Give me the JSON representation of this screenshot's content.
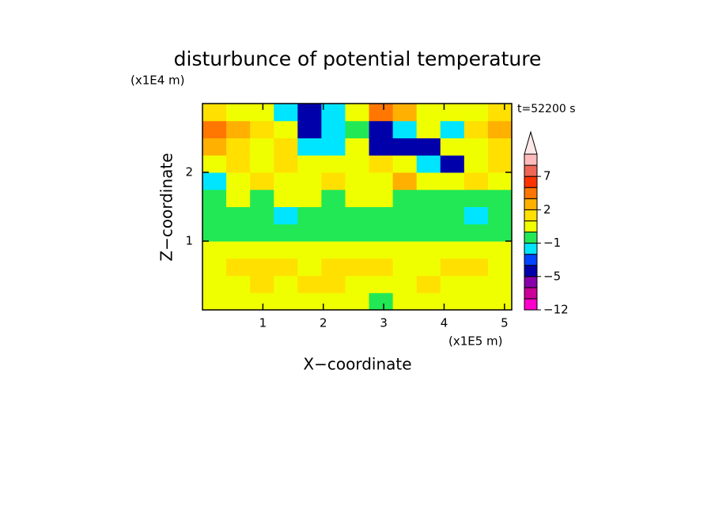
{
  "chart_data": {
    "type": "contour",
    "title": "disturbunce of potential temperature",
    "xlabel": "X−coordinate",
    "ylabel": "Z−coordinate",
    "xunit": "(x1E5 m)",
    "yunit": "(x1E4 m)",
    "annotation": "t=52200 s",
    "xlim": [
      0,
      5.12
    ],
    "ylim": [
      0,
      3
    ],
    "xticks": [
      1,
      2,
      3,
      4,
      5
    ],
    "yticks": [
      1,
      2
    ],
    "colorbar": {
      "levels": [
        -12,
        -9,
        -7,
        -5,
        -3,
        -2,
        -1,
        0,
        1,
        2,
        3,
        5,
        7,
        9,
        11
      ],
      "colors": [
        "#ff00cc",
        "#cc0099",
        "#8800aa",
        "#0000aa",
        "#0044ff",
        "#00e5ff",
        "#22e855",
        "#f0ff00",
        "#ffe000",
        "#ffb000",
        "#ff7700",
        "#ff3300",
        "#ee6655",
        "#ffbbbb"
      ],
      "ticks": [
        {
          "value": -12,
          "label": "−12"
        },
        {
          "value": -5,
          "label": "−5"
        },
        {
          "value": -1,
          "label": "−1"
        },
        2,
        7
      ]
    },
    "field": {
      "values": [
        [
          0.5,
          0.5,
          0.5,
          0.5,
          0.5,
          0.5,
          0.5,
          -0.5,
          0.5,
          0.5,
          0.5,
          0.5,
          0.5
        ],
        [
          0.5,
          0.5,
          1.5,
          0.5,
          1.5,
          1.5,
          0.5,
          0.5,
          0.5,
          1.5,
          0.5,
          0.5,
          0.5
        ],
        [
          0.5,
          1.5,
          1.5,
          1.5,
          0.5,
          1.5,
          1.5,
          1.5,
          0.5,
          0.5,
          1.5,
          1.5,
          0.5
        ],
        [
          0.5,
          0.5,
          0.5,
          0.5,
          0.5,
          0.5,
          0.5,
          0.5,
          0.5,
          0.5,
          0.5,
          0.5,
          0.5
        ],
        [
          -0.5,
          -0.5,
          -0.5,
          -0.5,
          -0.5,
          -0.5,
          -0.5,
          -0.5,
          -0.5,
          -0.5,
          -0.5,
          -0.5,
          -0.5
        ],
        [
          -0.5,
          -0.5,
          -0.5,
          -1.5,
          -0.5,
          -0.5,
          -0.5,
          -0.5,
          -0.5,
          -0.5,
          -0.5,
          -1.5,
          -0.5
        ],
        [
          -0.5,
          0.5,
          -0.5,
          0.5,
          0.5,
          -0.5,
          0.5,
          0.5,
          -0.5,
          -0.5,
          -0.5,
          -0.5,
          -0.5
        ],
        [
          -1.5,
          0.5,
          1.5,
          0.5,
          0.5,
          1.5,
          0.5,
          0.5,
          2.5,
          0.5,
          0.5,
          1.5,
          0.5
        ],
        [
          0.5,
          1.5,
          0.5,
          1.5,
          0.5,
          0.5,
          0.5,
          1.5,
          0.5,
          -1.5,
          -4,
          0.5,
          1.5
        ],
        [
          2.5,
          1.5,
          0.5,
          1.5,
          -1.5,
          -1.5,
          0.5,
          -4,
          -4,
          -4,
          0.5,
          0.5,
          1.5
        ],
        [
          4,
          2.5,
          1.5,
          0.5,
          -4,
          -1.5,
          -0.5,
          -4,
          -1.5,
          0.5,
          -1.5,
          1.5,
          2.5
        ],
        [
          1.5,
          0.5,
          0.5,
          -1.5,
          -4,
          -1.5,
          0.5,
          4,
          2.5,
          0.5,
          0.5,
          0.5,
          1.5
        ]
      ]
    }
  }
}
